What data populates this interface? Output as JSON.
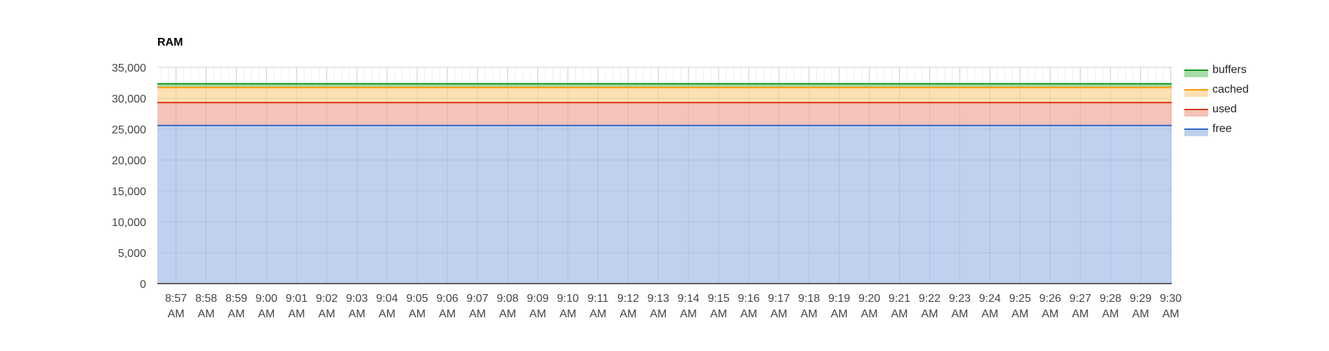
{
  "chart_data": {
    "type": "area",
    "title": "RAM",
    "xlabel": "",
    "ylabel": "",
    "ylim": [
      0,
      35000
    ],
    "y_ticks": [
      "35,000",
      "30,000",
      "25,000",
      "20,000",
      "15,000",
      "10,000",
      "5,000",
      "0"
    ],
    "y_tick_values": [
      35000,
      30000,
      25000,
      20000,
      15000,
      10000,
      5000,
      0
    ],
    "stacked": true,
    "grid": true,
    "legend_position": "right",
    "x_ticks": [
      {
        "time": "8:57",
        "ampm": "AM"
      },
      {
        "time": "8:58",
        "ampm": "AM"
      },
      {
        "time": "8:59",
        "ampm": "AM"
      },
      {
        "time": "9:00",
        "ampm": "AM"
      },
      {
        "time": "9:01",
        "ampm": "AM"
      },
      {
        "time": "9:02",
        "ampm": "AM"
      },
      {
        "time": "9:03",
        "ampm": "AM"
      },
      {
        "time": "9:04",
        "ampm": "AM"
      },
      {
        "time": "9:05",
        "ampm": "AM"
      },
      {
        "time": "9:06",
        "ampm": "AM"
      },
      {
        "time": "9:07",
        "ampm": "AM"
      },
      {
        "time": "9:08",
        "ampm": "AM"
      },
      {
        "time": "9:09",
        "ampm": "AM"
      },
      {
        "time": "9:10",
        "ampm": "AM"
      },
      {
        "time": "9:11",
        "ampm": "AM"
      },
      {
        "time": "9:12",
        "ampm": "AM"
      },
      {
        "time": "9:13",
        "ampm": "AM"
      },
      {
        "time": "9:14",
        "ampm": "AM"
      },
      {
        "time": "9:15",
        "ampm": "AM"
      },
      {
        "time": "9:16",
        "ampm": "AM"
      },
      {
        "time": "9:17",
        "ampm": "AM"
      },
      {
        "time": "9:18",
        "ampm": "AM"
      },
      {
        "time": "9:19",
        "ampm": "AM"
      },
      {
        "time": "9:20",
        "ampm": "AM"
      },
      {
        "time": "9:21",
        "ampm": "AM"
      },
      {
        "time": "9:22",
        "ampm": "AM"
      },
      {
        "time": "9:23",
        "ampm": "AM"
      },
      {
        "time": "9:24",
        "ampm": "AM"
      },
      {
        "time": "9:25",
        "ampm": "AM"
      },
      {
        "time": "9:26",
        "ampm": "AM"
      },
      {
        "time": "9:27",
        "ampm": "AM"
      },
      {
        "time": "9:28",
        "ampm": "AM"
      },
      {
        "time": "9:29",
        "ampm": "AM"
      },
      {
        "time": "9:30",
        "ampm": "AM"
      }
    ],
    "series": [
      {
        "name": "free",
        "color": "#3366cc",
        "fill": "#c0d0ef",
        "value": 25600
      },
      {
        "name": "used",
        "color": "#dc3912",
        "fill": "#f4c3b9",
        "value": 3700
      },
      {
        "name": "cached",
        "color": "#ff9900",
        "fill": "#fde1b4",
        "value": 2450
      },
      {
        "name": "buffers",
        "color": "#109618",
        "fill": "#a7dba9",
        "value": 600
      }
    ],
    "legend_order": [
      "buffers",
      "cached",
      "used",
      "free"
    ]
  }
}
